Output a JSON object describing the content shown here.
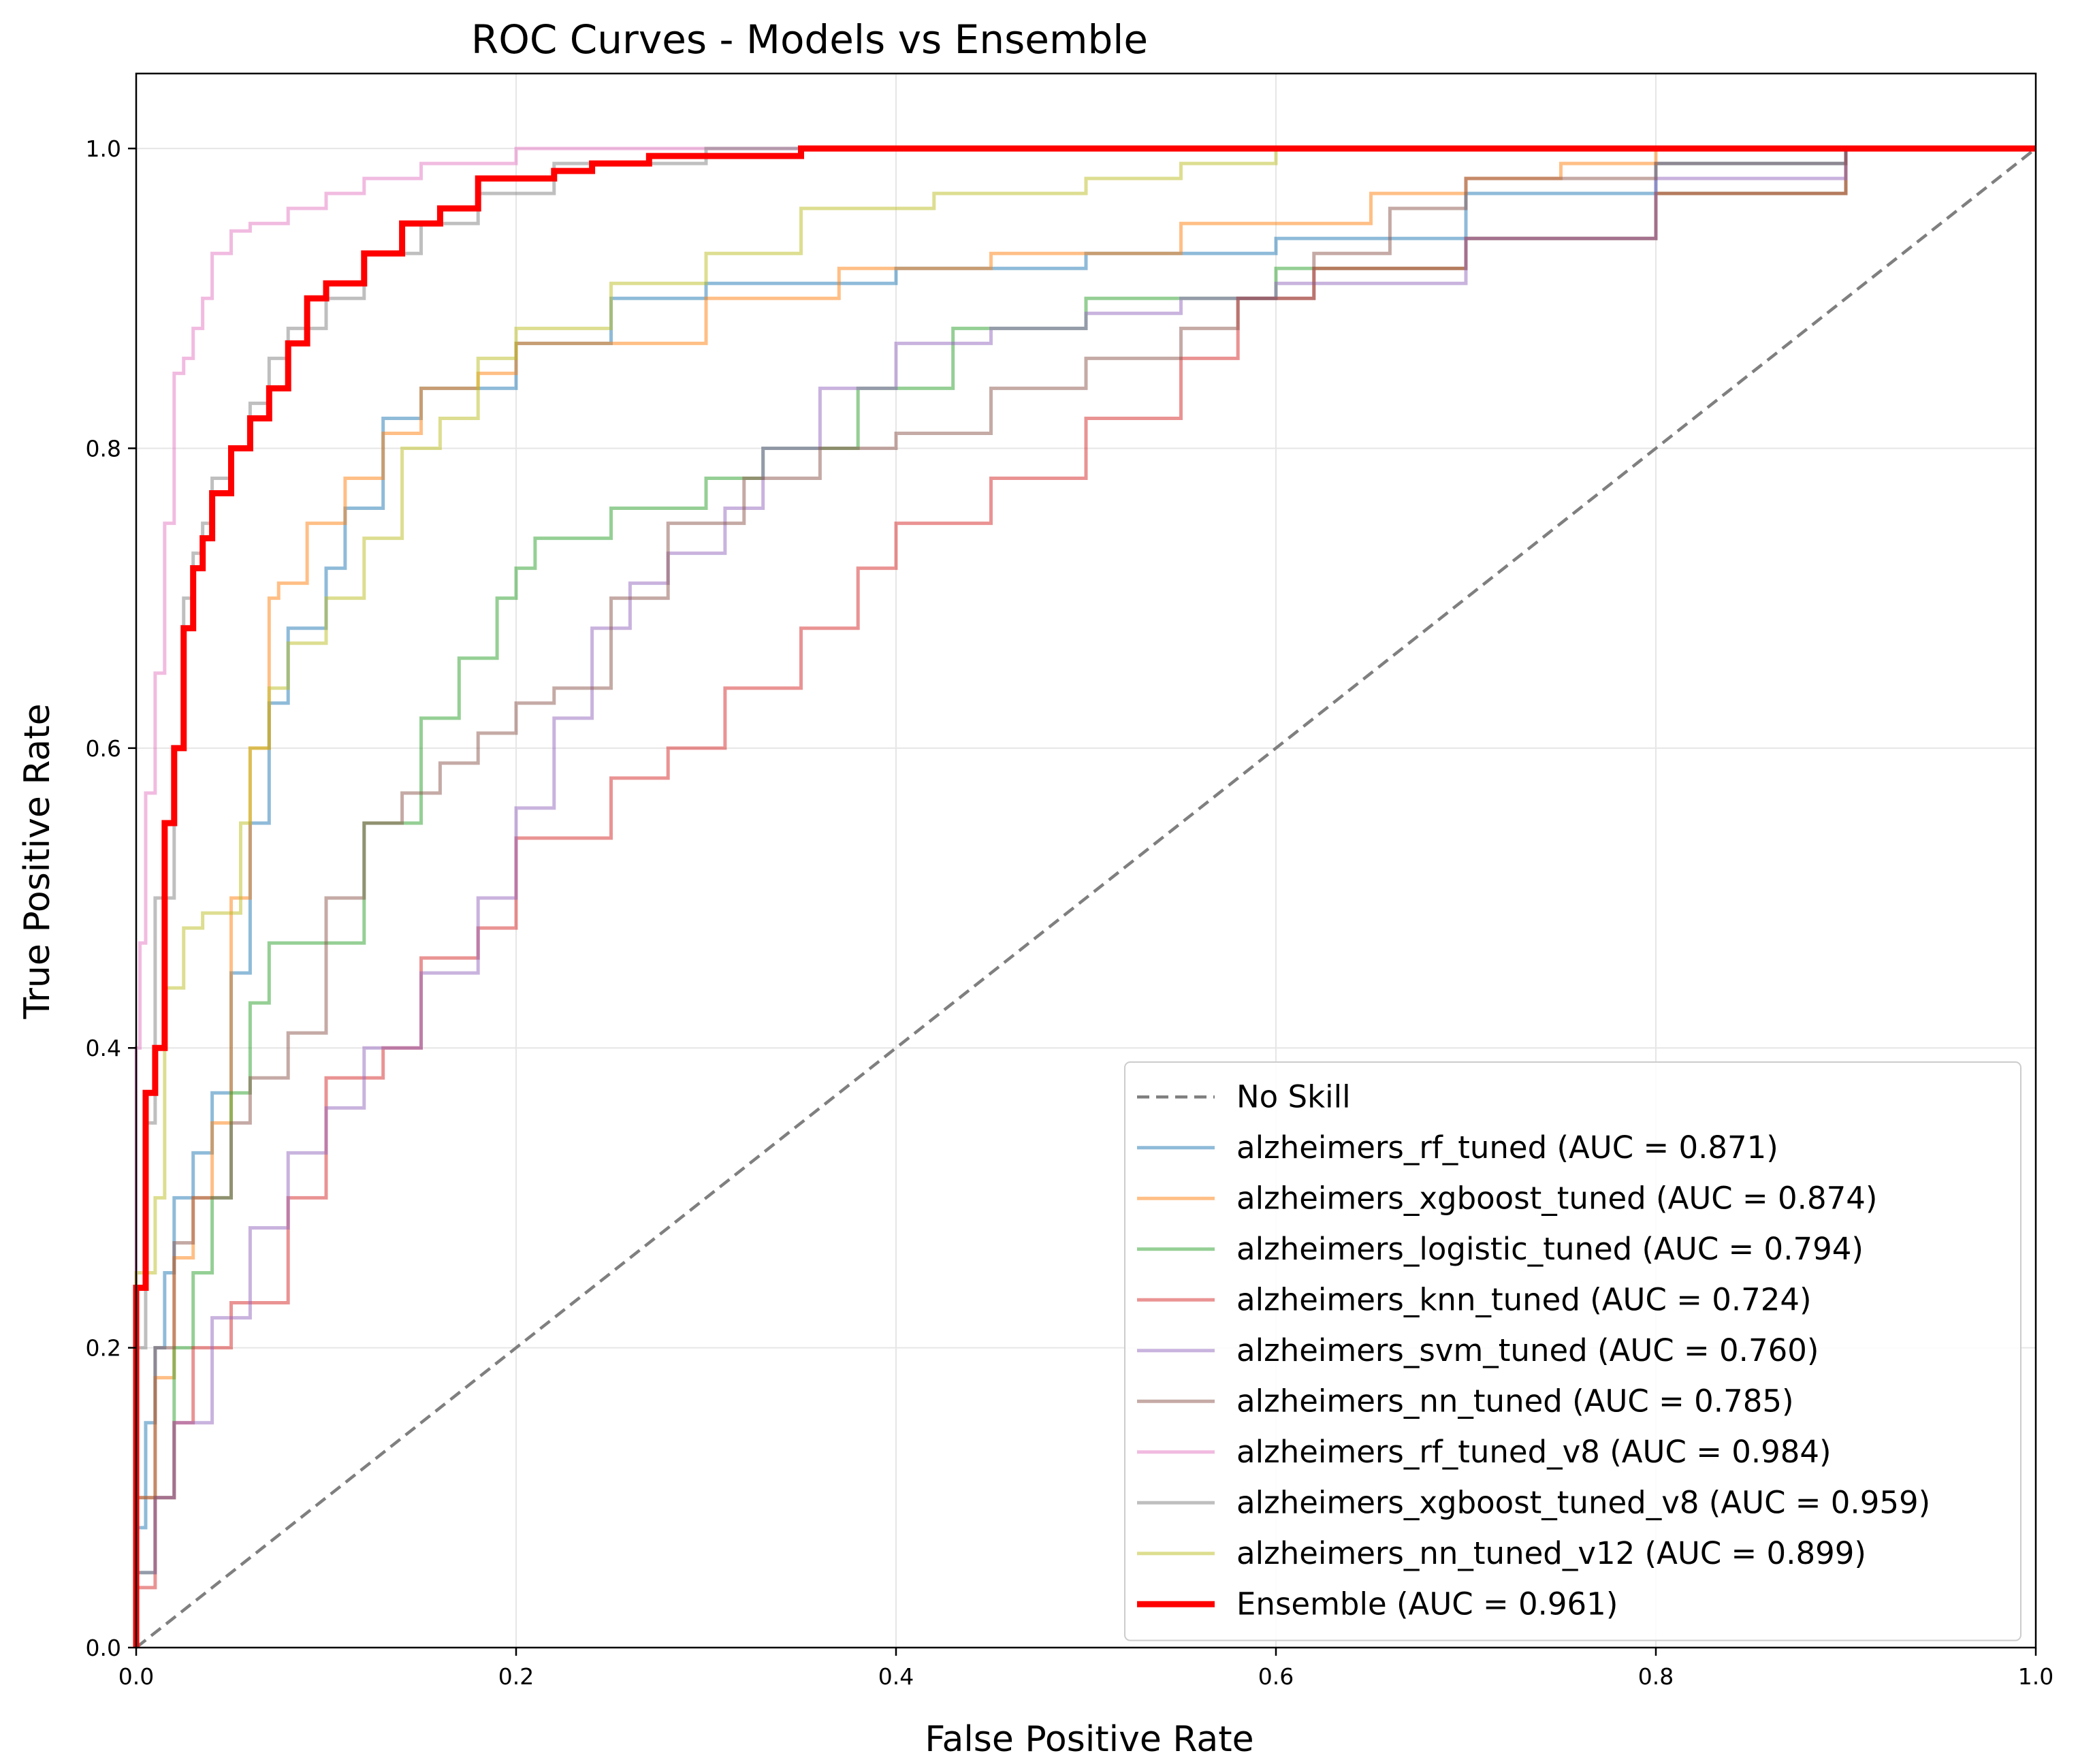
{
  "chart_data": {
    "type": "line",
    "title": "ROC Curves - Models vs Ensemble",
    "xlabel": "False Positive Rate",
    "ylabel": "True Positive Rate",
    "xlim": [
      0.0,
      1.0
    ],
    "ylim": [
      0.0,
      1.05
    ],
    "grid": true,
    "legend_position": "lower-right",
    "x_ticks": [
      "0.0",
      "0.2",
      "0.4",
      "0.6",
      "0.8",
      "1.0"
    ],
    "y_ticks": [
      "0.0",
      "0.2",
      "0.4",
      "0.6",
      "0.8",
      "1.0"
    ],
    "x_tick_values": [
      0,
      0.2,
      0.4,
      0.6,
      0.8,
      1.0
    ],
    "y_tick_values": [
      0,
      0.2,
      0.4,
      0.6,
      0.8,
      1.0
    ],
    "series": [
      {
        "name": "No Skill",
        "label": "No Skill",
        "color": "#7f7f7f",
        "style": "dashed",
        "x": [
          0,
          1
        ],
        "y": [
          0,
          1
        ]
      },
      {
        "name": "alzheimers_rf_tuned",
        "label": "alzheimers_rf_tuned (AUC = 0.871)",
        "color": "#1f77b4",
        "style": "solid",
        "x": [
          0,
          0.005,
          0.01,
          0.015,
          0.02,
          0.03,
          0.04,
          0.05,
          0.06,
          0.07,
          0.08,
          0.1,
          0.11,
          0.13,
          0.15,
          0.2,
          0.25,
          0.3,
          0.4,
          0.5,
          0.6,
          0.7,
          0.8,
          0.9,
          1.0
        ],
        "y": [
          0,
          0.08,
          0.15,
          0.2,
          0.25,
          0.3,
          0.33,
          0.37,
          0.45,
          0.55,
          0.63,
          0.68,
          0.72,
          0.76,
          0.82,
          0.84,
          0.87,
          0.9,
          0.91,
          0.92,
          0.93,
          0.94,
          0.97,
          0.99,
          1.0
        ]
      },
      {
        "name": "alzheimers_xgboost_tuned",
        "label": "alzheimers_xgboost_tuned (AUC = 0.874)",
        "color": "#ff7f0e",
        "style": "solid",
        "x": [
          0,
          0.01,
          0.02,
          0.03,
          0.04,
          0.05,
          0.06,
          0.07,
          0.075,
          0.09,
          0.11,
          0.13,
          0.15,
          0.18,
          0.2,
          0.3,
          0.37,
          0.45,
          0.55,
          0.65,
          0.7,
          0.75,
          0.8,
          0.9,
          1.0
        ],
        "y": [
          0,
          0.1,
          0.18,
          0.26,
          0.3,
          0.35,
          0.5,
          0.6,
          0.7,
          0.71,
          0.75,
          0.78,
          0.81,
          0.84,
          0.85,
          0.87,
          0.9,
          0.92,
          0.93,
          0.95,
          0.97,
          0.98,
          0.99,
          1.0,
          1.0
        ]
      },
      {
        "name": "alzheimers_logistic_tuned",
        "label": "alzheimers_logistic_tuned (AUC = 0.794)",
        "color": "#2ca02c",
        "style": "solid",
        "x": [
          0,
          0.01,
          0.02,
          0.03,
          0.04,
          0.05,
          0.06,
          0.07,
          0.09,
          0.12,
          0.15,
          0.17,
          0.19,
          0.2,
          0.21,
          0.25,
          0.3,
          0.33,
          0.38,
          0.43,
          0.5,
          0.6,
          0.7,
          0.8,
          0.9,
          1.0
        ],
        "y": [
          0,
          0.05,
          0.1,
          0.2,
          0.25,
          0.3,
          0.37,
          0.43,
          0.47,
          0.47,
          0.55,
          0.62,
          0.66,
          0.7,
          0.72,
          0.74,
          0.76,
          0.78,
          0.8,
          0.84,
          0.88,
          0.9,
          0.92,
          0.94,
          0.97,
          1.0
        ]
      },
      {
        "name": "alzheimers_knn_tuned",
        "label": "alzheimers_knn_tuned (AUC = 0.724)",
        "color": "#d62728",
        "style": "solid",
        "x": [
          0,
          0.01,
          0.02,
          0.03,
          0.05,
          0.08,
          0.1,
          0.13,
          0.15,
          0.18,
          0.2,
          0.25,
          0.28,
          0.31,
          0.35,
          0.38,
          0.4,
          0.45,
          0.5,
          0.55,
          0.58,
          0.62,
          0.7,
          0.8,
          0.9,
          1.0
        ],
        "y": [
          0,
          0.04,
          0.1,
          0.15,
          0.2,
          0.23,
          0.3,
          0.38,
          0.4,
          0.46,
          0.48,
          0.54,
          0.58,
          0.6,
          0.64,
          0.68,
          0.72,
          0.75,
          0.78,
          0.82,
          0.86,
          0.9,
          0.92,
          0.94,
          0.97,
          1.0
        ]
      },
      {
        "name": "alzheimers_svm_tuned",
        "label": "alzheimers_svm_tuned (AUC = 0.760)",
        "color": "#9467bd",
        "style": "solid",
        "x": [
          0,
          0.01,
          0.02,
          0.04,
          0.06,
          0.08,
          0.1,
          0.12,
          0.15,
          0.18,
          0.2,
          0.22,
          0.24,
          0.26,
          0.28,
          0.31,
          0.33,
          0.36,
          0.4,
          0.45,
          0.5,
          0.55,
          0.6,
          0.7,
          0.8,
          0.9,
          1.0
        ],
        "y": [
          0,
          0.05,
          0.1,
          0.15,
          0.22,
          0.28,
          0.33,
          0.36,
          0.4,
          0.45,
          0.5,
          0.56,
          0.62,
          0.68,
          0.71,
          0.73,
          0.76,
          0.8,
          0.84,
          0.87,
          0.88,
          0.89,
          0.9,
          0.91,
          0.94,
          0.98,
          1.0
        ]
      },
      {
        "name": "alzheimers_nn_tuned",
        "label": "alzheimers_nn_tuned (AUC = 0.785)",
        "color": "#8c564b",
        "style": "solid",
        "x": [
          0,
          0.01,
          0.02,
          0.03,
          0.05,
          0.06,
          0.08,
          0.1,
          0.12,
          0.14,
          0.16,
          0.18,
          0.2,
          0.22,
          0.25,
          0.28,
          0.32,
          0.36,
          0.4,
          0.45,
          0.5,
          0.55,
          0.58,
          0.62,
          0.66,
          0.7,
          0.8,
          0.9,
          1.0
        ],
        "y": [
          0,
          0.1,
          0.2,
          0.27,
          0.3,
          0.35,
          0.38,
          0.41,
          0.5,
          0.55,
          0.57,
          0.59,
          0.61,
          0.63,
          0.64,
          0.7,
          0.75,
          0.78,
          0.8,
          0.81,
          0.84,
          0.86,
          0.88,
          0.9,
          0.93,
          0.96,
          0.98,
          0.99,
          1.0
        ]
      },
      {
        "name": "alzheimers_rf_tuned_v8",
        "label": "alzheimers_rf_tuned_v8 (AUC = 0.984)",
        "color": "#e377c2",
        "style": "solid",
        "x": [
          0,
          0.002,
          0.005,
          0.01,
          0.015,
          0.02,
          0.025,
          0.03,
          0.035,
          0.04,
          0.05,
          0.06,
          0.08,
          0.1,
          0.12,
          0.15,
          0.2,
          0.25,
          1.0
        ],
        "y": [
          0,
          0.4,
          0.47,
          0.57,
          0.65,
          0.75,
          0.85,
          0.86,
          0.88,
          0.9,
          0.93,
          0.945,
          0.95,
          0.96,
          0.97,
          0.98,
          0.99,
          1.0,
          1.0
        ]
      },
      {
        "name": "alzheimers_xgboost_tuned_v8",
        "label": "alzheimers_xgboost_tuned_v8 (AUC = 0.959)",
        "color": "#7f7f7f",
        "style": "solid",
        "x": [
          0,
          0.005,
          0.01,
          0.02,
          0.025,
          0.03,
          0.035,
          0.04,
          0.05,
          0.06,
          0.07,
          0.08,
          0.1,
          0.12,
          0.15,
          0.18,
          0.22,
          0.3,
          0.35,
          1.0
        ],
        "y": [
          0,
          0.2,
          0.35,
          0.5,
          0.6,
          0.7,
          0.73,
          0.75,
          0.78,
          0.8,
          0.83,
          0.86,
          0.88,
          0.9,
          0.93,
          0.95,
          0.97,
          0.99,
          1.0,
          1.0
        ]
      },
      {
        "name": "alzheimers_nn_tuned_v12",
        "label": "alzheimers_nn_tuned_v12 (AUC = 0.899)",
        "color": "#bcbd22",
        "style": "solid",
        "x": [
          0,
          0.01,
          0.015,
          0.025,
          0.035,
          0.055,
          0.06,
          0.07,
          0.08,
          0.1,
          0.12,
          0.14,
          0.16,
          0.18,
          0.2,
          0.25,
          0.3,
          0.35,
          0.42,
          0.5,
          0.55,
          0.6,
          0.65,
          1.0
        ],
        "y": [
          0,
          0.25,
          0.3,
          0.44,
          0.48,
          0.49,
          0.55,
          0.6,
          0.64,
          0.67,
          0.7,
          0.74,
          0.8,
          0.82,
          0.86,
          0.88,
          0.91,
          0.93,
          0.96,
          0.97,
          0.98,
          0.99,
          1.0,
          1.0
        ]
      },
      {
        "name": "Ensemble",
        "label": "Ensemble (AUC = 0.961)",
        "color": "#ff0000",
        "style": "solid",
        "emphasis": true,
        "x": [
          0,
          0.005,
          0.01,
          0.015,
          0.02,
          0.025,
          0.03,
          0.035,
          0.04,
          0.05,
          0.06,
          0.07,
          0.08,
          0.09,
          0.1,
          0.12,
          0.14,
          0.16,
          0.18,
          0.22,
          0.24,
          0.27,
          0.3,
          0.35,
          0.47,
          1.0
        ],
        "y": [
          0,
          0.24,
          0.37,
          0.4,
          0.55,
          0.6,
          0.68,
          0.72,
          0.74,
          0.77,
          0.8,
          0.82,
          0.84,
          0.87,
          0.9,
          0.91,
          0.93,
          0.95,
          0.96,
          0.98,
          0.985,
          0.99,
          0.995,
          0.995,
          1.0,
          1.0
        ]
      }
    ]
  }
}
